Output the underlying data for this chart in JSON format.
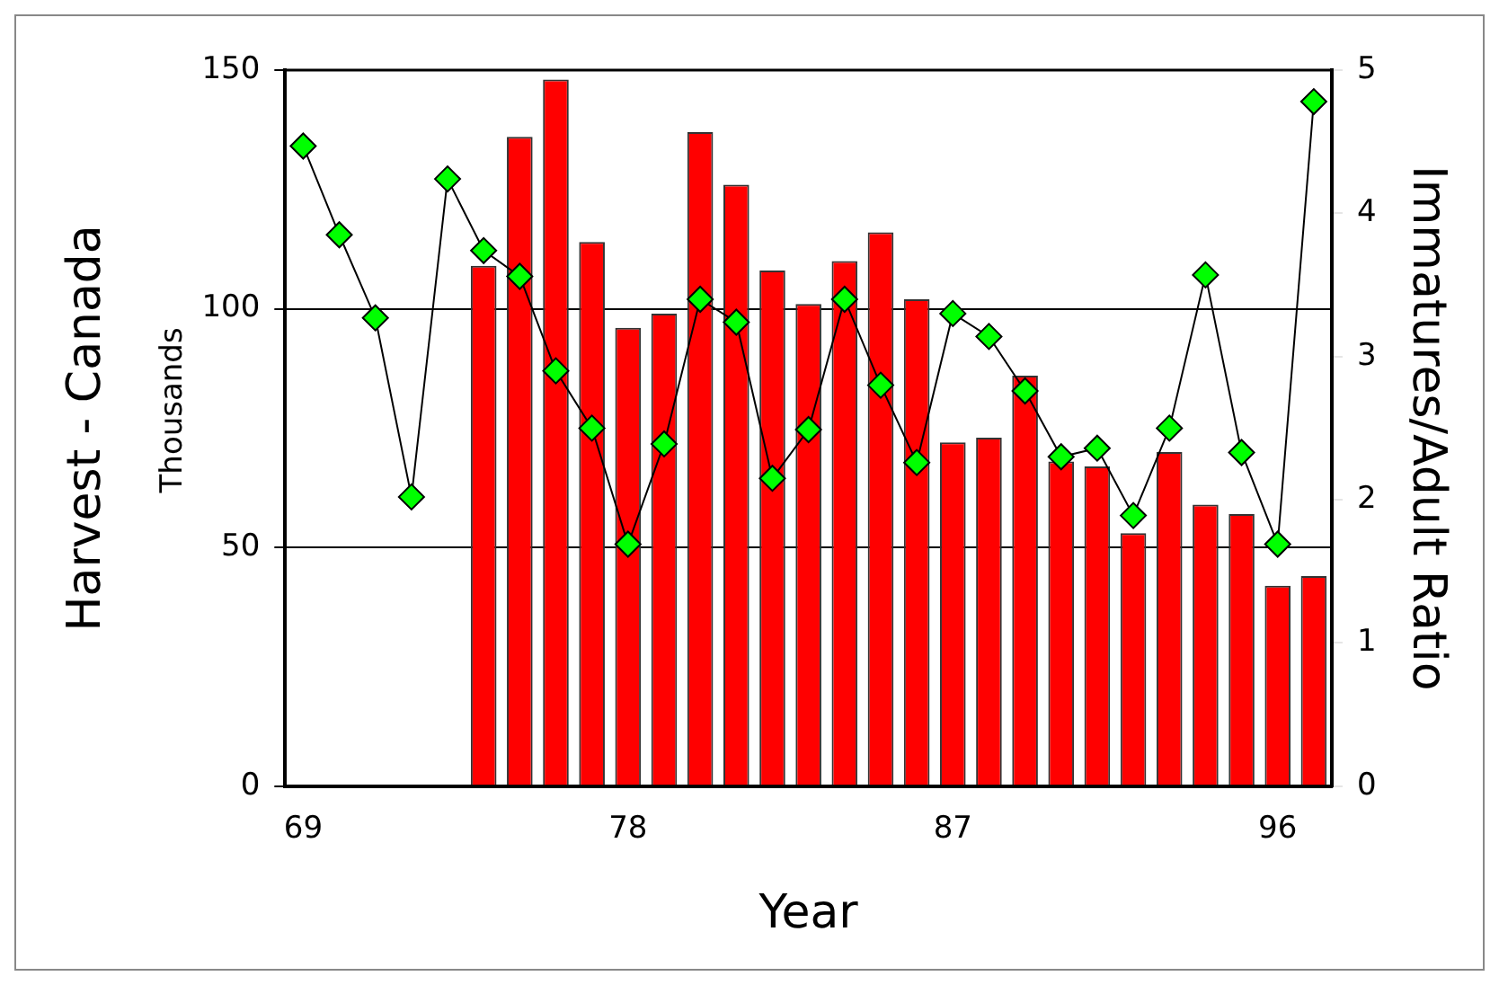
{
  "chart_data": {
    "type": "bar",
    "xlabel": "Year",
    "ylabel": "Harvest - Canada",
    "y2label": "Immatures/Adult Ratio",
    "annotations": [
      "Thousands"
    ],
    "categories": [
      "69",
      null,
      null,
      null,
      null,
      null,
      null,
      null,
      null,
      "78",
      null,
      null,
      null,
      null,
      null,
      null,
      null,
      null,
      "87",
      null,
      null,
      null,
      null,
      null,
      null,
      null,
      null,
      "96",
      null
    ],
    "series": [
      {
        "color": "#ff0000",
        "values": [
          null,
          null,
          null,
          null,
          null,
          109,
          136,
          148,
          114,
          96,
          99,
          137,
          126,
          108,
          101,
          110,
          116,
          102,
          72,
          73,
          86,
          68,
          67,
          53,
          70,
          59,
          57,
          42,
          44
        ]
      },
      {
        "type": "line",
        "axis": "y2",
        "color": "#00ff00",
        "marker": "diamond",
        "values": [
          4.47,
          3.85,
          3.27,
          2.02,
          4.24,
          3.74,
          3.56,
          2.9,
          2.5,
          1.69,
          2.39,
          3.4,
          3.24,
          2.15,
          2.49,
          3.4,
          2.8,
          2.26,
          3.3,
          3.14,
          2.76,
          2.3,
          2.36,
          1.89,
          2.5,
          3.57,
          2.33,
          1.69,
          4.78
        ]
      }
    ],
    "ylim": [
      0,
      150
    ],
    "yticks": [
      0,
      50,
      100,
      150
    ],
    "y2lim": [
      0,
      5
    ],
    "y2ticks": [
      0,
      1,
      2,
      3,
      4,
      5
    ],
    "grid": "y",
    "legend": false
  }
}
